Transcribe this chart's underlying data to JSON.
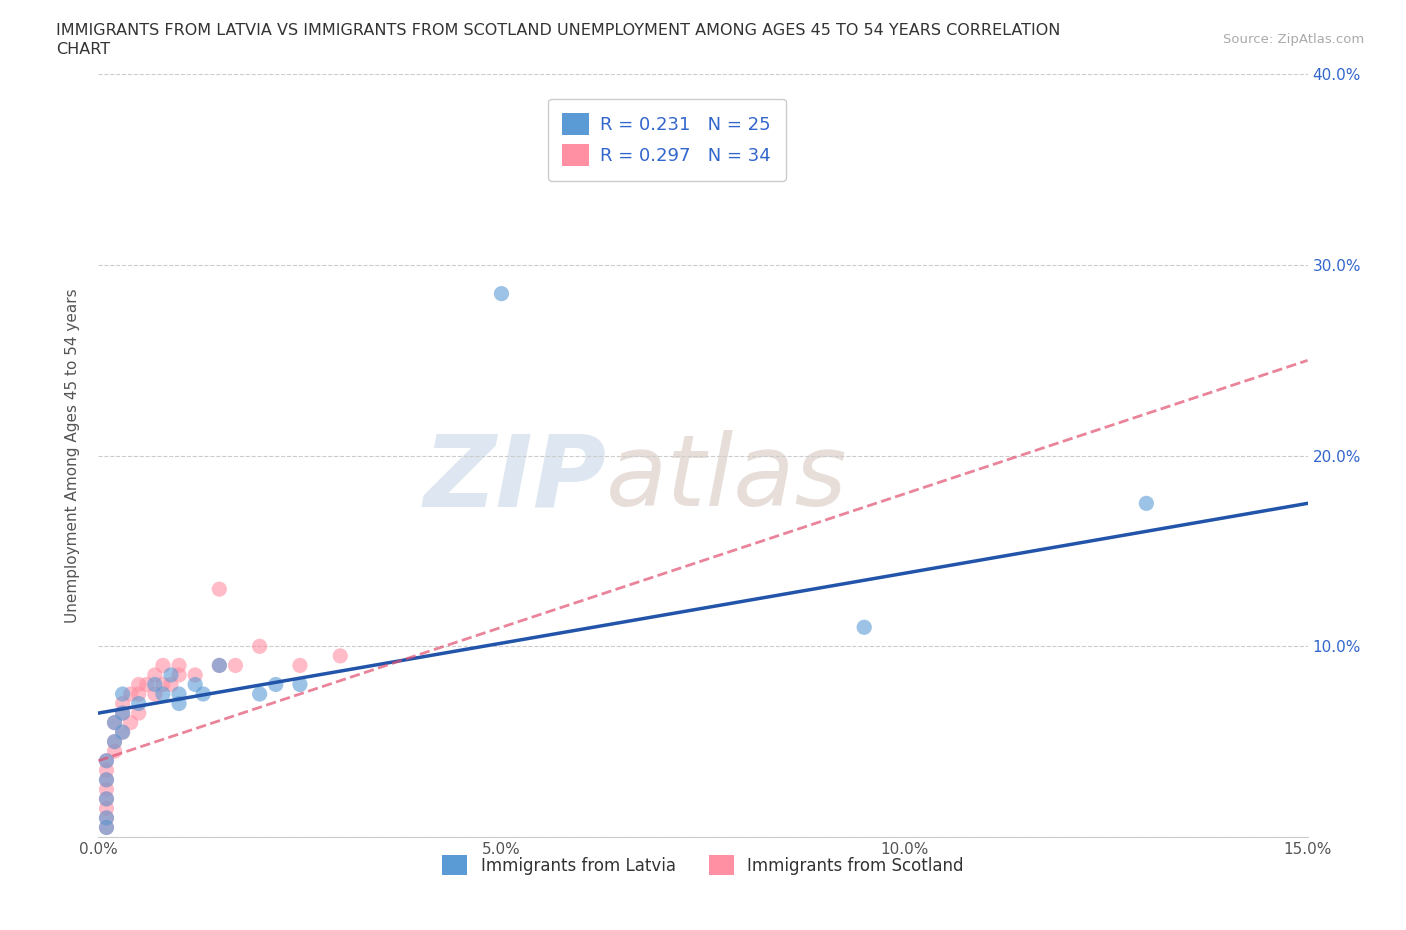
{
  "title_line1": "IMMIGRANTS FROM LATVIA VS IMMIGRANTS FROM SCOTLAND UNEMPLOYMENT AMONG AGES 45 TO 54 YEARS CORRELATION",
  "title_line2": "CHART",
  "source_text": "Source: ZipAtlas.com",
  "ylabel": "Unemployment Among Ages 45 to 54 years",
  "xlim": [
    0.0,
    0.15
  ],
  "ylim": [
    0.0,
    0.4
  ],
  "xticks": [
    0.0,
    0.05,
    0.1,
    0.15
  ],
  "xticklabels": [
    "0.0%",
    "5.0%",
    "10.0%",
    "15.0%"
  ],
  "yticks": [
    0.0,
    0.1,
    0.2,
    0.3,
    0.4
  ],
  "yticklabels_right": [
    "",
    "10.0%",
    "20.0%",
    "30.0%",
    "40.0%"
  ],
  "latvia_color": "#5B9BD5",
  "scotland_color": "#FF8FA3",
  "latvia_line_color": "#2255AA",
  "scotland_line_color": "#E05070",
  "latvia_R": 0.231,
  "latvia_N": 25,
  "scotland_R": 0.297,
  "scotland_N": 34,
  "watermark_zip": "ZIP",
  "watermark_atlas": "atlas",
  "background_color": "#ffffff",
  "grid_color": "#cccccc",
  "legend_box_color": "#3366CC",
  "bottom_legend_label1": "Immigrants from Latvia",
  "bottom_legend_label2": "Immigrants from Scotland",
  "latvia_points_x": [
    0.001,
    0.001,
    0.001,
    0.001,
    0.001,
    0.002,
    0.002,
    0.003,
    0.003,
    0.003,
    0.005,
    0.007,
    0.008,
    0.009,
    0.01,
    0.01,
    0.012,
    0.013,
    0.015,
    0.02,
    0.022,
    0.025,
    0.05,
    0.095,
    0.13
  ],
  "latvia_points_y": [
    0.005,
    0.01,
    0.02,
    0.03,
    0.04,
    0.05,
    0.06,
    0.055,
    0.065,
    0.075,
    0.07,
    0.08,
    0.075,
    0.085,
    0.07,
    0.075,
    0.08,
    0.075,
    0.09,
    0.075,
    0.08,
    0.08,
    0.285,
    0.11,
    0.175
  ],
  "scotland_points_x": [
    0.001,
    0.001,
    0.001,
    0.001,
    0.001,
    0.001,
    0.001,
    0.001,
    0.002,
    0.002,
    0.002,
    0.003,
    0.003,
    0.003,
    0.004,
    0.004,
    0.005,
    0.005,
    0.005,
    0.006,
    0.007,
    0.007,
    0.008,
    0.008,
    0.009,
    0.01,
    0.01,
    0.012,
    0.015,
    0.015,
    0.017,
    0.02,
    0.025,
    0.03
  ],
  "scotland_points_y": [
    0.005,
    0.01,
    0.015,
    0.02,
    0.025,
    0.03,
    0.035,
    0.04,
    0.045,
    0.05,
    0.06,
    0.055,
    0.065,
    0.07,
    0.06,
    0.075,
    0.065,
    0.075,
    0.08,
    0.08,
    0.075,
    0.085,
    0.08,
    0.09,
    0.08,
    0.085,
    0.09,
    0.085,
    0.09,
    0.13,
    0.09,
    0.1,
    0.09,
    0.095
  ],
  "latvia_line_x": [
    0.0,
    0.15
  ],
  "latvia_line_y": [
    0.065,
    0.175
  ],
  "scotland_line_x": [
    0.0,
    0.15
  ],
  "scotland_line_y": [
    0.04,
    0.25
  ]
}
